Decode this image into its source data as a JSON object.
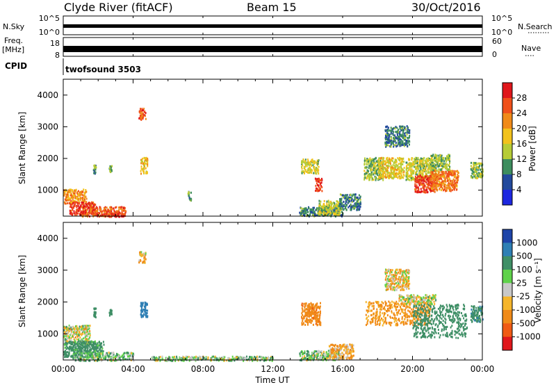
{
  "header": {
    "station": "Clyde River (fitACF)",
    "beam": "Beam 15",
    "date": "30/Oct/2016"
  },
  "strips": {
    "nsky_label": "N.Sky",
    "nsky_ticks": [
      "10^5",
      "10^0"
    ],
    "nsearch_label": "N.Search",
    "nsearch_ticks": [
      "10^5",
      "10^0"
    ],
    "freq_label_1": "Freq.",
    "freq_label_2": "[MHz]",
    "freq_ticks": [
      "18",
      "8"
    ],
    "nave_label": "Nave",
    "nave_ticks": [
      "60",
      "0"
    ],
    "cpid_label": "CPID",
    "cpid_value": "twofsound 3503"
  },
  "axes": {
    "ylabel": "Slant Range [km]",
    "xlabel": "Time UT",
    "yticks": [
      "4000",
      "3000",
      "2000",
      "1000"
    ],
    "xticks": [
      "00:00",
      "04:00",
      "08:00",
      "12:00",
      "16:00",
      "20:00",
      "00:00"
    ]
  },
  "colorbars": {
    "power": {
      "label": "Power [dB]",
      "ticks": [
        "28",
        "24",
        "20",
        "16",
        "12",
        "8",
        "4"
      ],
      "colors": [
        "#e0161b",
        "#f0501a",
        "#f08a18",
        "#f2c21c",
        "#b6cc36",
        "#3d8d5e",
        "#22499c",
        "#1d27e0"
      ]
    },
    "velocity": {
      "label": "Velocity [m s⁻¹]",
      "ticks": [
        "1000",
        "500",
        "100",
        "25",
        "-25",
        "-100",
        "-500",
        "-1000"
      ],
      "colors": [
        "#1e44a8",
        "#2e7fb4",
        "#3f8f66",
        "#5fd24a",
        "#c8c8c8",
        "#f5b52b",
        "#f08a18",
        "#f05a14",
        "#e0161b"
      ]
    }
  },
  "chart_data": [
    {
      "type": "line",
      "title": "N.Sky / N.Search",
      "x_range": [
        "00:00",
        "24:00"
      ],
      "series": [
        {
          "name": "N.Sky",
          "values": [
            1000,
            1000,
            1000,
            1000,
            1000,
            1000,
            1000
          ]
        },
        {
          "name": "N.Search",
          "values": []
        }
      ]
    },
    {
      "type": "line",
      "title": "Freq. / Nave",
      "x_range": [
        "00:00",
        "24:00"
      ],
      "series": [
        {
          "name": "Freq.",
          "values": [
            10.5,
            10.5,
            10.5,
            10.5,
            10.5,
            10.5,
            10.5
          ]
        },
        {
          "name": "Nave",
          "values": []
        }
      ]
    },
    {
      "type": "heatmap",
      "title": "Power",
      "x_unit": "hours UT",
      "y_unit": "km",
      "xlim": [
        0,
        24
      ],
      "ylim": [
        180,
        4500
      ],
      "clim": [
        0,
        30
      ],
      "blobs": [
        {
          "t": [
            0.0,
            1.3
          ],
          "r": [
            600,
            1050
          ],
          "v": 20
        },
        {
          "t": [
            0.3,
            1.8
          ],
          "r": [
            250,
            650
          ],
          "v": 26
        },
        {
          "t": [
            1.0,
            3.6
          ],
          "r": [
            200,
            500
          ],
          "v": 24
        },
        {
          "t": [
            2.5,
            3.5
          ],
          "r": [
            180,
            300
          ],
          "v": 28
        },
        {
          "t": [
            1.7,
            1.85
          ],
          "r": [
            1550,
            1850
          ],
          "v": 10
        },
        {
          "t": [
            2.6,
            2.75
          ],
          "r": [
            1600,
            1800
          ],
          "v": 12
        },
        {
          "t": [
            4.4,
            4.8
          ],
          "r": [
            1550,
            2050
          ],
          "v": 18
        },
        {
          "t": [
            4.3,
            4.7
          ],
          "r": [
            3250,
            3600
          ],
          "v": 24
        },
        {
          "t": [
            7.1,
            7.3
          ],
          "r": [
            700,
            1000
          ],
          "v": 10
        },
        {
          "t": [
            13.6,
            14.6
          ],
          "r": [
            1550,
            2000
          ],
          "v": 14
        },
        {
          "t": [
            14.4,
            14.8
          ],
          "r": [
            1000,
            1400
          ],
          "v": 26
        },
        {
          "t": [
            13.5,
            16.0
          ],
          "r": [
            200,
            500
          ],
          "v": 9
        },
        {
          "t": [
            14.6,
            15.9
          ],
          "r": [
            250,
            700
          ],
          "v": 14
        },
        {
          "t": [
            15.8,
            17.0
          ],
          "r": [
            400,
            900
          ],
          "v": 8
        },
        {
          "t": [
            17.2,
            18.3
          ],
          "r": [
            1350,
            2050
          ],
          "v": 12
        },
        {
          "t": [
            18.0,
            19.5
          ],
          "r": [
            1400,
            2050
          ],
          "v": 16
        },
        {
          "t": [
            19.6,
            21.3
          ],
          "r": [
            1350,
            2050
          ],
          "v": 14
        },
        {
          "t": [
            20.1,
            21.4
          ],
          "r": [
            950,
            1500
          ],
          "v": 26
        },
        {
          "t": [
            21.0,
            22.6
          ],
          "r": [
            1000,
            1650
          ],
          "v": 22
        },
        {
          "t": [
            21.0,
            22.1
          ],
          "r": [
            1650,
            2150
          ],
          "v": 12
        },
        {
          "t": [
            23.3,
            24.0
          ],
          "r": [
            1400,
            1900
          ],
          "v": 12
        },
        {
          "t": [
            18.4,
            19.8
          ],
          "r": [
            2400,
            3050
          ],
          "v": 8
        }
      ]
    },
    {
      "type": "heatmap",
      "title": "Velocity",
      "x_unit": "hours UT",
      "y_unit": "km",
      "xlim": [
        0,
        24
      ],
      "ylim": [
        180,
        4500
      ],
      "clim": [
        -1000,
        1000
      ],
      "blobs": [
        {
          "t": [
            0.0,
            1.5
          ],
          "r": [
            700,
            1300
          ],
          "v": 0
        },
        {
          "t": [
            0.0,
            2.3
          ],
          "r": [
            300,
            800
          ],
          "v": 200
        },
        {
          "t": [
            0.5,
            4.0
          ],
          "r": [
            180,
            450
          ],
          "v": 80
        },
        {
          "t": [
            1.7,
            1.85
          ],
          "r": [
            1550,
            1850
          ],
          "v": 300
        },
        {
          "t": [
            2.6,
            2.75
          ],
          "r": [
            1600,
            1800
          ],
          "v": 300
        },
        {
          "t": [
            4.4,
            4.8
          ],
          "r": [
            1550,
            2050
          ],
          "v": 700
        },
        {
          "t": [
            4.3,
            4.7
          ],
          "r": [
            3250,
            3600
          ],
          "v": -60
        },
        {
          "t": [
            5.0,
            12.0
          ],
          "r": [
            180,
            320
          ],
          "v": 60
        },
        {
          "t": [
            13.6,
            14.7
          ],
          "r": [
            1300,
            2000
          ],
          "v": -400
        },
        {
          "t": [
            13.5,
            15.8
          ],
          "r": [
            200,
            500
          ],
          "v": 60
        },
        {
          "t": [
            15.2,
            16.6
          ],
          "r": [
            250,
            700
          ],
          "v": -100
        },
        {
          "t": [
            17.3,
            21.0
          ],
          "r": [
            1300,
            2050
          ],
          "v": -150
        },
        {
          "t": [
            19.2,
            21.3
          ],
          "r": [
            1950,
            2250
          ],
          "v": 0
        },
        {
          "t": [
            20.0,
            23.1
          ],
          "r": [
            900,
            1950
          ],
          "v": 300
        },
        {
          "t": [
            23.3,
            24.0
          ],
          "r": [
            1400,
            1900
          ],
          "v": 400
        },
        {
          "t": [
            18.4,
            19.8
          ],
          "r": [
            2400,
            3050
          ],
          "v": -60
        }
      ]
    }
  ]
}
